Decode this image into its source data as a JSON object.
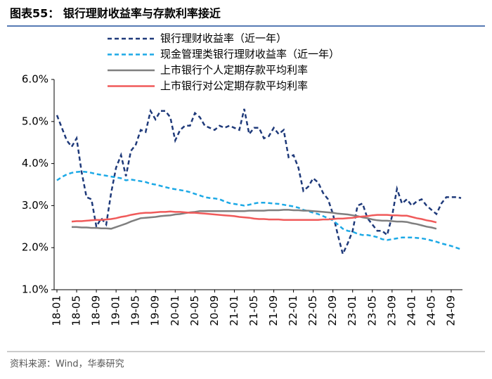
{
  "chart_data": {
    "type": "line",
    "title": "图表55：  银行理财收益率与存款利率接近",
    "source": "资料来源：Wind，华泰研究",
    "categories": [
      "18-01",
      null,
      null,
      null,
      "18-05",
      null,
      null,
      null,
      "18-09",
      null,
      null,
      null,
      "19-01",
      null,
      null,
      null,
      "19-05",
      null,
      null,
      null,
      "19-09",
      null,
      null,
      null,
      "20-01",
      null,
      null,
      null,
      "20-05",
      null,
      null,
      null,
      "20-09",
      null,
      null,
      null,
      "21-01",
      null,
      null,
      null,
      "21-05",
      null,
      null,
      null,
      "21-09",
      null,
      null,
      null,
      "22-01",
      null,
      null,
      null,
      "22-05",
      null,
      null,
      null,
      "22-09",
      null,
      null,
      null,
      "23-01",
      null,
      null,
      null,
      "23-05",
      null,
      null,
      null,
      "23-09",
      null,
      null,
      null,
      "24-01",
      null,
      null,
      null,
      "24-05",
      null,
      null,
      null,
      "24-09",
      null,
      null
    ],
    "ylim": [
      1,
      6
    ],
    "yticks": [
      {
        "value": 1,
        "label": "1.0%"
      },
      {
        "value": 2,
        "label": "2.0%"
      },
      {
        "value": 3,
        "label": "3.0%"
      },
      {
        "value": 4,
        "label": "4.0%"
      },
      {
        "value": 5,
        "label": "5.0%"
      },
      {
        "value": 6,
        "label": "6.0%"
      }
    ],
    "grid": false,
    "legend": "top",
    "series": [
      {
        "name": "银行理财收益率（近一年）",
        "color": "#1f3a7a",
        "dash": true,
        "values": [
          5.15,
          4.85,
          4.55,
          4.4,
          4.6,
          3.8,
          3.2,
          3.15,
          2.5,
          2.7,
          2.55,
          3.3,
          3.9,
          4.2,
          3.7,
          4.3,
          4.45,
          4.8,
          4.75,
          5.25,
          5.05,
          5.25,
          5.25,
          5.1,
          4.55,
          4.8,
          4.9,
          4.9,
          5.2,
          5.1,
          4.9,
          4.85,
          4.8,
          4.9,
          4.85,
          4.9,
          4.85,
          4.8,
          5.3,
          4.7,
          4.85,
          4.85,
          4.6,
          4.65,
          4.85,
          4.7,
          4.8,
          4.15,
          4.2,
          3.9,
          3.35,
          3.45,
          3.65,
          3.55,
          3.3,
          3.15,
          2.8,
          2.3,
          1.85,
          2.1,
          2.4,
          3.0,
          3.05,
          2.7,
          2.55,
          2.4,
          2.4,
          2.3,
          2.75,
          3.4,
          3.05,
          3.15,
          3.0,
          3.1,
          3.15,
          3.0,
          2.9,
          2.8,
          3.05,
          3.2,
          3.2,
          3.2,
          3.18
        ]
      },
      {
        "name": "现金管理类银行理财收益率（近一年）",
        "color": "#1ca9e6",
        "dash": true,
        "values": [
          3.6,
          3.68,
          3.74,
          3.78,
          3.8,
          3.81,
          3.8,
          3.78,
          3.75,
          3.73,
          3.71,
          3.69,
          3.67,
          3.65,
          3.6,
          3.62,
          3.6,
          3.58,
          3.56,
          3.52,
          3.5,
          3.47,
          3.44,
          3.41,
          3.39,
          3.37,
          3.35,
          3.32,
          3.28,
          3.24,
          3.2,
          3.18,
          3.17,
          3.15,
          3.1,
          3.06,
          3.04,
          3.02,
          3.0,
          3.02,
          3.05,
          3.07,
          3.07,
          3.06,
          3.05,
          3.04,
          3.02,
          3.0,
          2.98,
          2.95,
          2.9,
          2.87,
          2.83,
          2.8,
          2.75,
          2.7,
          2.65,
          2.55,
          2.45,
          2.4,
          2.38,
          2.33,
          2.3,
          2.3,
          2.28,
          2.25,
          2.2,
          2.18,
          2.2,
          2.22,
          2.24,
          2.24,
          2.24,
          2.23,
          2.22,
          2.2,
          2.17,
          2.14,
          2.1,
          2.07,
          2.04,
          2.0,
          1.96
        ]
      },
      {
        "name": "上市银行个人定期存款平均利率",
        "color": "#7f7f7f",
        "dash": false,
        "values": [
          null,
          null,
          null,
          2.49,
          2.49,
          2.48,
          2.48,
          2.47,
          2.47,
          2.46,
          2.46,
          2.45,
          2.49,
          2.53,
          2.57,
          2.62,
          2.66,
          2.7,
          2.71,
          2.72,
          2.73,
          2.75,
          2.76,
          2.77,
          2.79,
          2.8,
          2.82,
          2.84,
          2.85,
          2.87,
          2.87,
          2.87,
          2.87,
          2.87,
          2.87,
          2.87,
          2.87,
          2.87,
          2.87,
          2.88,
          2.88,
          2.88,
          2.88,
          2.89,
          2.89,
          2.89,
          2.9,
          2.9,
          2.89,
          2.89,
          2.88,
          2.88,
          2.87,
          2.86,
          2.85,
          2.84,
          2.83,
          2.81,
          2.8,
          2.79,
          2.77,
          2.75,
          2.72,
          2.7,
          2.67,
          2.65,
          2.64,
          2.64,
          2.63,
          2.62,
          2.62,
          2.61,
          2.58,
          2.56,
          2.53,
          2.5,
          2.48,
          2.45,
          null,
          null,
          null,
          null,
          null
        ]
      },
      {
        "name": "上市银行对公定期存款平均利率",
        "color": "#f05a5a",
        "dash": false,
        "values": [
          null,
          null,
          null,
          2.62,
          2.63,
          2.63,
          2.64,
          2.65,
          2.66,
          2.66,
          2.67,
          2.68,
          2.7,
          2.73,
          2.75,
          2.78,
          2.8,
          2.82,
          2.83,
          2.83,
          2.84,
          2.85,
          2.85,
          2.86,
          2.85,
          2.85,
          2.84,
          2.83,
          2.83,
          2.82,
          2.81,
          2.8,
          2.79,
          2.78,
          2.77,
          2.76,
          2.75,
          2.73,
          2.72,
          2.71,
          2.69,
          2.68,
          2.68,
          2.67,
          2.67,
          2.67,
          2.66,
          2.66,
          2.66,
          2.66,
          2.66,
          2.66,
          2.66,
          2.66,
          2.67,
          2.67,
          2.68,
          2.69,
          2.69,
          2.7,
          2.71,
          2.73,
          2.74,
          2.75,
          2.77,
          2.78,
          2.78,
          2.78,
          2.77,
          2.77,
          2.76,
          2.76,
          2.73,
          2.7,
          2.68,
          2.65,
          2.63,
          2.6,
          null,
          null,
          null,
          null,
          null
        ]
      }
    ]
  }
}
